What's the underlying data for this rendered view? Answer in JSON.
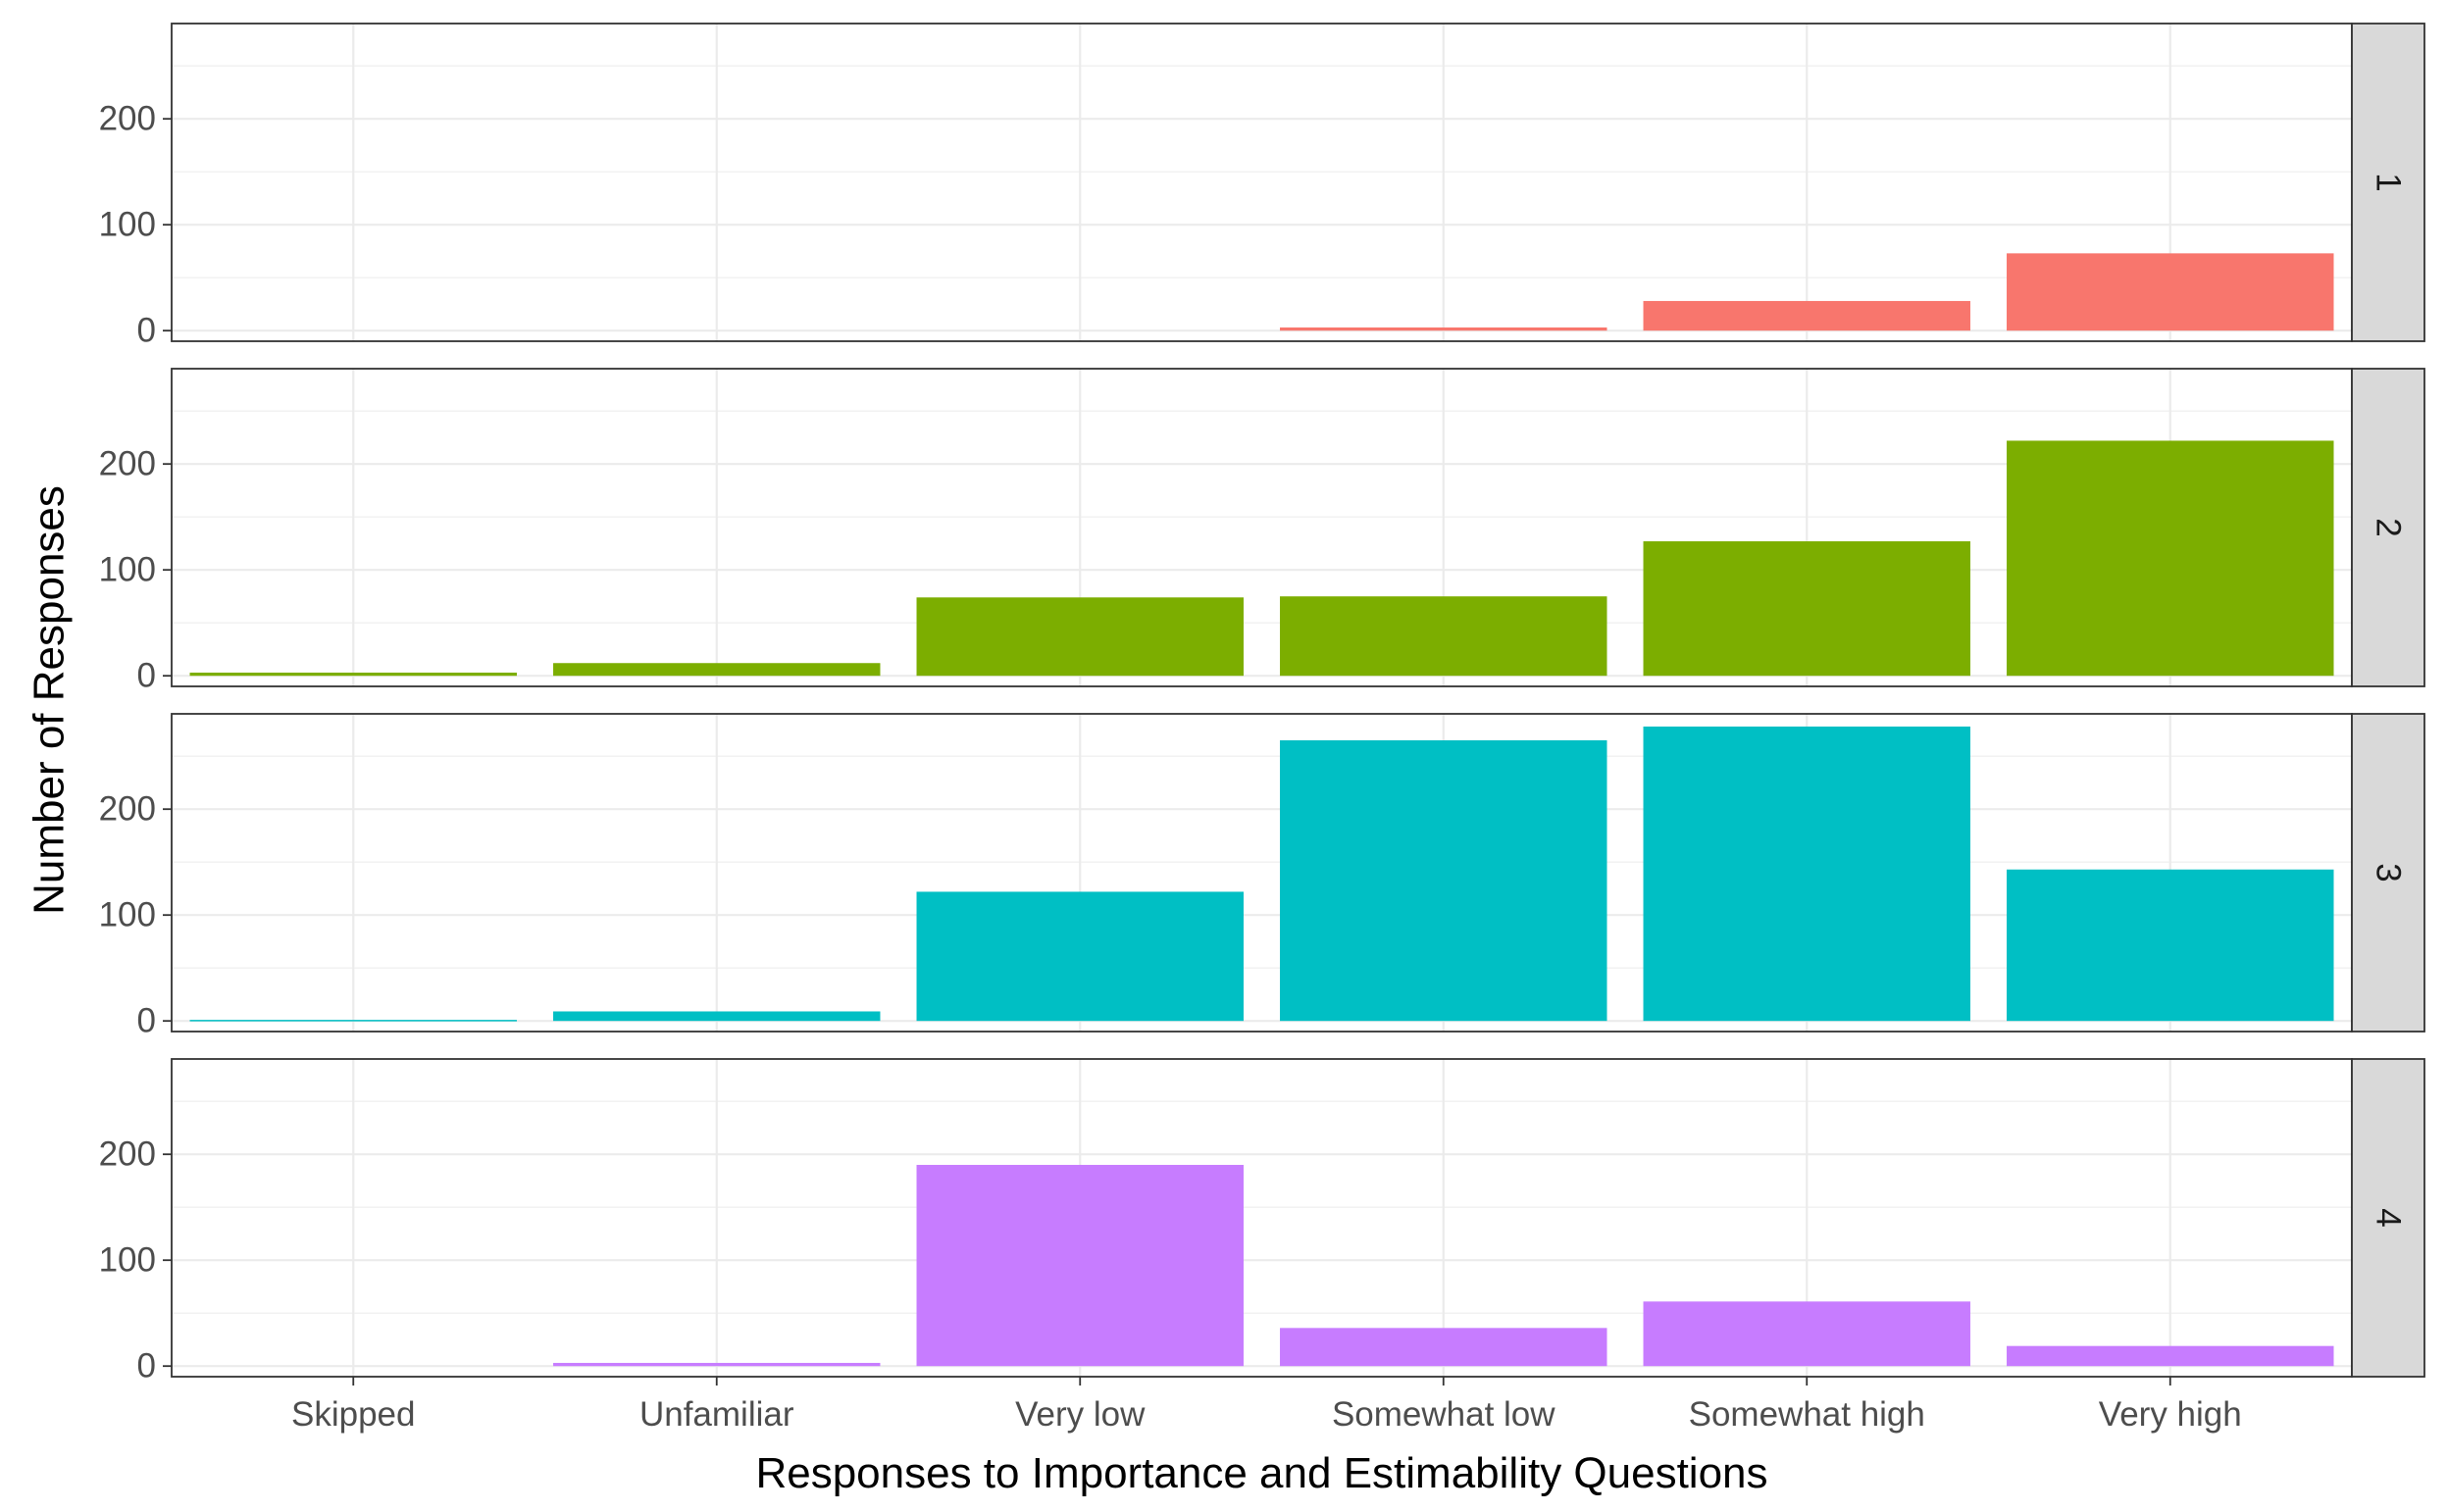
{
  "chart_data": {
    "type": "bar",
    "layout": "faceted",
    "xlabel": "Responses to Importance and Estimability Questions",
    "ylabel": "Number of Responses",
    "categories": [
      "Skipped",
      "Unfamiliar",
      "Very low",
      "Somewhat low",
      "Somewhat high",
      "Very high"
    ],
    "ylim": [
      -10,
      290
    ],
    "yticks": [
      0,
      100,
      200
    ],
    "grid": true,
    "legend": "none",
    "facets": [
      {
        "label": "1",
        "color": "#F8766D",
        "values": [
          0,
          0,
          0,
          3,
          28,
          73
        ]
      },
      {
        "label": "2",
        "color": "#7CAE00",
        "values": [
          3,
          12,
          74,
          75,
          127,
          222
        ]
      },
      {
        "label": "3",
        "color": "#00BFC4",
        "values": [
          1,
          9,
          122,
          265,
          278,
          143
        ]
      },
      {
        "label": "4",
        "color": "#C77CFF",
        "values": [
          0,
          3,
          190,
          36,
          61,
          19
        ]
      }
    ]
  }
}
